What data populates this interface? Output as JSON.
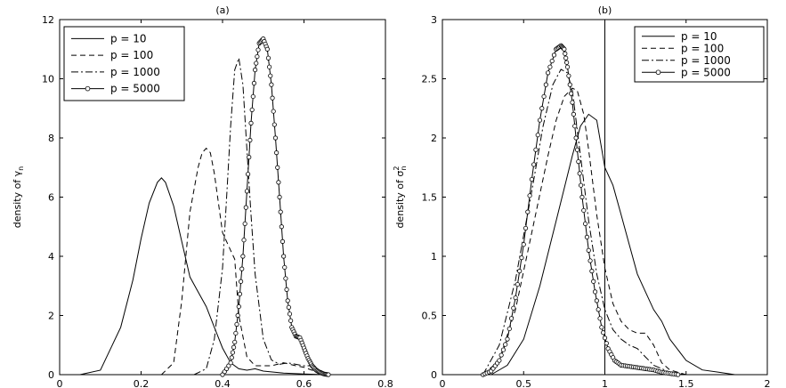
{
  "chart_data": [
    {
      "type": "line",
      "title": "(a)",
      "xlabel": "",
      "ylabel": "density of γ",
      "ylabel_sub": "n",
      "xlim": [
        0,
        0.8
      ],
      "ylim": [
        0,
        12
      ],
      "xticks": [
        0,
        0.2,
        0.4,
        0.6,
        0.8
      ],
      "xtick_labels": [
        "0",
        "0.2",
        "0.4",
        "0.6",
        "0.8"
      ],
      "yticks": [
        0,
        2,
        4,
        6,
        8,
        10,
        12
      ],
      "ytick_labels": [
        "0",
        "2",
        "4",
        "6",
        "8",
        "10",
        "12"
      ],
      "legend_position": "top-left",
      "grid": false,
      "series": [
        {
          "name": "p = 10",
          "style": "solid",
          "x": [
            0.05,
            0.1,
            0.15,
            0.18,
            0.2,
            0.22,
            0.24,
            0.25,
            0.26,
            0.28,
            0.3,
            0.32,
            0.34,
            0.36,
            0.38,
            0.4,
            0.42,
            0.44,
            0.46,
            0.48,
            0.5,
            0.55,
            0.6,
            0.65
          ],
          "y": [
            0,
            0.15,
            1.6,
            3.2,
            4.6,
            5.8,
            6.5,
            6.65,
            6.5,
            5.7,
            4.5,
            3.3,
            2.8,
            2.3,
            1.6,
            0.9,
            0.4,
            0.2,
            0.15,
            0.2,
            0.12,
            0.05,
            0.02,
            0
          ]
        },
        {
          "name": "p = 100",
          "style": "dashed",
          "x": [
            0.25,
            0.28,
            0.3,
            0.32,
            0.34,
            0.35,
            0.36,
            0.37,
            0.38,
            0.4,
            0.42,
            0.43,
            0.44,
            0.46,
            0.48,
            0.5,
            0.52,
            0.55,
            0.58,
            0.6,
            0.63,
            0.66
          ],
          "y": [
            0,
            0.4,
            2.5,
            5.5,
            7.0,
            7.5,
            7.65,
            7.5,
            6.8,
            4.8,
            4.2,
            3.9,
            2.0,
            0.6,
            0.3,
            0.3,
            0.3,
            0.4,
            0.3,
            0.25,
            0.1,
            0
          ]
        },
        {
          "name": "p = 1000",
          "style": "dashdot",
          "x": [
            0.33,
            0.36,
            0.38,
            0.4,
            0.41,
            0.42,
            0.43,
            0.44,
            0.45,
            0.46,
            0.47,
            0.48,
            0.5,
            0.52,
            0.54,
            0.56,
            0.58,
            0.6,
            0.62,
            0.64,
            0.66
          ],
          "y": [
            0,
            0.2,
            1.2,
            3.6,
            6.0,
            8.4,
            10.3,
            10.7,
            9.8,
            7.6,
            5.4,
            3.4,
            1.2,
            0.5,
            0.35,
            0.4,
            0.35,
            0.3,
            0.3,
            0.15,
            0
          ]
        },
        {
          "name": "p = 5000",
          "style": "solid-circle",
          "x": [
            0.4,
            0.42,
            0.43,
            0.44,
            0.45,
            0.46,
            0.47,
            0.48,
            0.49,
            0.5,
            0.51,
            0.52,
            0.53,
            0.54,
            0.55,
            0.56,
            0.57,
            0.58,
            0.59,
            0.6,
            0.61,
            0.62,
            0.63,
            0.64,
            0.65,
            0.66
          ],
          "y": [
            0,
            0.4,
            1.1,
            2.3,
            4.0,
            6.2,
            8.5,
            10.3,
            11.2,
            11.35,
            11.0,
            9.8,
            8.0,
            6.0,
            4.0,
            2.5,
            1.6,
            1.3,
            1.25,
            0.9,
            0.55,
            0.3,
            0.15,
            0.07,
            0.02,
            0
          ]
        }
      ]
    },
    {
      "type": "line",
      "title": "(b)",
      "xlabel": "",
      "ylabel": "density of σ",
      "ylabel_sup": "2",
      "ylabel_sub": "n",
      "xlim": [
        0,
        2
      ],
      "ylim": [
        0,
        3
      ],
      "xticks": [
        0,
        0.5,
        1,
        1.5,
        2
      ],
      "xtick_labels": [
        "0",
        "0.5",
        "1",
        "1.5",
        "2"
      ],
      "yticks": [
        0,
        0.5,
        1,
        1.5,
        2,
        2.5,
        3
      ],
      "ytick_labels": [
        "0",
        "0.5",
        "1",
        "1.5",
        "2",
        "2.5",
        "3"
      ],
      "reference_line_x": 1,
      "legend_position": "top-right",
      "grid": false,
      "series": [
        {
          "name": "p = 10",
          "style": "solid",
          "x": [
            0.3,
            0.4,
            0.5,
            0.6,
            0.7,
            0.8,
            0.85,
            0.9,
            0.95,
            1.0,
            1.05,
            1.1,
            1.15,
            1.2,
            1.25,
            1.3,
            1.35,
            1.4,
            1.5,
            1.6,
            1.7,
            1.8
          ],
          "y": [
            0,
            0.08,
            0.3,
            0.75,
            1.3,
            1.85,
            2.1,
            2.2,
            2.15,
            1.75,
            1.6,
            1.35,
            1.1,
            0.85,
            0.7,
            0.55,
            0.45,
            0.3,
            0.12,
            0.04,
            0.02,
            0
          ]
        },
        {
          "name": "p = 100",
          "style": "dashed",
          "x": [
            0.25,
            0.35,
            0.45,
            0.55,
            0.65,
            0.7,
            0.75,
            0.8,
            0.83,
            0.87,
            0.9,
            0.95,
            1.0,
            1.05,
            1.1,
            1.15,
            1.2,
            1.25,
            1.3,
            1.35,
            1.4,
            1.5
          ],
          "y": [
            0,
            0.12,
            0.55,
            1.2,
            1.85,
            2.15,
            2.35,
            2.42,
            2.4,
            2.2,
            1.9,
            1.35,
            0.9,
            0.6,
            0.45,
            0.38,
            0.35,
            0.35,
            0.25,
            0.1,
            0.04,
            0
          ]
        },
        {
          "name": "p = 1000",
          "style": "dashdot",
          "x": [
            0.25,
            0.35,
            0.45,
            0.55,
            0.62,
            0.68,
            0.73,
            0.77,
            0.8,
            0.85,
            0.9,
            0.95,
            1.0,
            1.05,
            1.1,
            1.15,
            1.2,
            1.25,
            1.3,
            1.4,
            1.5
          ],
          "y": [
            0,
            0.25,
            0.8,
            1.55,
            2.1,
            2.45,
            2.58,
            2.55,
            2.4,
            1.85,
            1.3,
            0.85,
            0.55,
            0.38,
            0.3,
            0.25,
            0.22,
            0.15,
            0.08,
            0.02,
            0
          ]
        },
        {
          "name": "p = 5000",
          "style": "solid-circle",
          "x": [
            0.25,
            0.3,
            0.35,
            0.4,
            0.45,
            0.5,
            0.55,
            0.6,
            0.65,
            0.7,
            0.73,
            0.75,
            0.77,
            0.8,
            0.83,
            0.86,
            0.9,
            0.94,
            0.98,
            1.02,
            1.06,
            1.1,
            1.15,
            1.2,
            1.25,
            1.3,
            1.35,
            1.4,
            1.45
          ],
          "y": [
            0,
            0.03,
            0.12,
            0.3,
            0.65,
            1.1,
            1.65,
            2.15,
            2.55,
            2.75,
            2.78,
            2.75,
            2.6,
            2.3,
            1.9,
            1.5,
            1.05,
            0.7,
            0.4,
            0.22,
            0.12,
            0.08,
            0.07,
            0.06,
            0.05,
            0.04,
            0.02,
            0.01,
            0
          ]
        }
      ]
    }
  ]
}
